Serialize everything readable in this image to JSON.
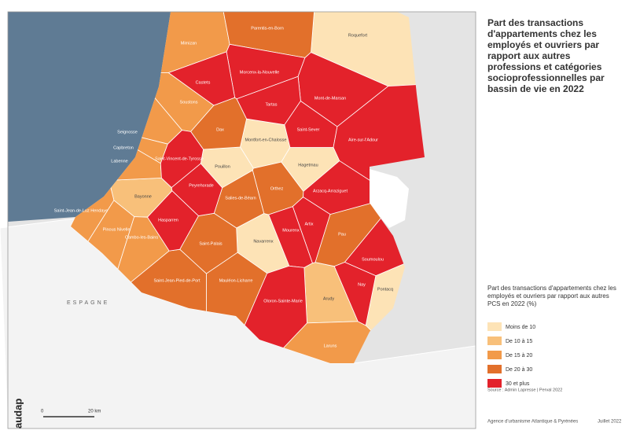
{
  "title": "Part des transactions d'appartements chez les employés et ouvriers par rapport aux autres professions et catégories socioprofessionnelles par bassin de vie en 2022",
  "country_label": "ESPAGNE",
  "logo": "audap",
  "scale": {
    "start": "0",
    "end": "20 km"
  },
  "legend": {
    "title": "Part des transactions d'appartements chez les employés et ouvriers par rapport aux autres PCS en 2022 (%)",
    "items": [
      {
        "label": "Moins de 10",
        "color": "#fde3b6",
        "regions": [
          "Roquefort",
          "Montfort-en-Chalosse",
          "Hagetmau",
          "Pouillon",
          "Navarrenx",
          "Pontacq"
        ]
      },
      {
        "label": "De 10 à 15",
        "color": "#f8c07a",
        "regions": [
          "Bayonne",
          "Arudy"
        ]
      },
      {
        "label": "De 15 à 20",
        "color": "#f29a4a",
        "regions": [
          "Mimizan",
          "Soustons",
          "Seignosse",
          "Capbreton",
          "Labenne",
          "Saint-Jean-de-Luz Hendaye",
          "Pinous Nivelle",
          "Cambo-les-Bains",
          "Laruns"
        ]
      },
      {
        "label": "De 20 à 30",
        "color": "#e2702b",
        "regions": [
          "Parentis-en-Born",
          "Dax",
          "Orthez",
          "Salies-de-Béarn",
          "Pau",
          "Saint-Palais",
          "Saint-Jean-Pied-de-Port",
          "Mauléon-Licharre"
        ]
      },
      {
        "label": "30 et plus",
        "color": "#e3222b",
        "regions": [
          "Morcenx-la-Nouvelle",
          "Castets",
          "Mont-de-Marsan",
          "Tartas",
          "Saint-Sever",
          "Aire-sur-l'Adour",
          "Saint-Vincent-de-Tyrosse",
          "Peyrehorade",
          "Arzacq-Arraziguet",
          "Hasparren",
          "Artix",
          "Mourenx",
          "Soumoulou",
          "Nay",
          "Oloron-Sainte-Marie"
        ]
      }
    ]
  },
  "source": "Source : Admin Lapresse | Perval 2022",
  "footer": {
    "agency": "Agence d'urbanisme Atlantique & Pyrénées",
    "date": "Juillet 2022"
  }
}
